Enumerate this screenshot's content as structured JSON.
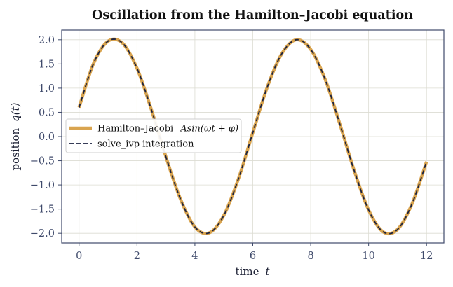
{
  "chart_data": {
    "type": "line",
    "title": "Oscillation from the Hamilton–Jacobi equation",
    "xlabel": "time",
    "xlabel_symbol": "t",
    "ylabel": "position",
    "ylabel_symbol": "q(t)",
    "xlim": [
      -0.6,
      12.6
    ],
    "ylim": [
      -2.2,
      2.2
    ],
    "xticks": [
      0,
      2,
      4,
      6,
      8,
      10,
      12
    ],
    "yticks": [
      2.0,
      1.5,
      1.0,
      0.5,
      0.0,
      -0.5,
      -1.0,
      -1.5,
      -2.0
    ],
    "ytick_labels": [
      "2.0",
      "1.5",
      "1.0",
      "0.5",
      "0.0",
      "−0.5",
      "−1.0",
      "−1.5",
      "−2.0"
    ],
    "grid": true,
    "legend_position": "center-left",
    "series": [
      {
        "name": "Hamilton–Jacobi",
        "name_formula": "Asin(ωt + φ)",
        "style": "solid-thick",
        "color": "#d9a44f",
        "x": [
          0,
          0.5,
          1,
          1.5,
          2,
          2.5,
          3,
          3.5,
          4,
          4.5,
          5,
          5.5,
          6,
          6.5,
          7,
          7.5,
          8,
          8.5,
          9,
          9.5,
          10,
          10.5,
          11,
          11.5,
          12
        ],
        "y": [
          0.6,
          1.51,
          1.97,
          1.93,
          1.41,
          0.55,
          -0.42,
          -1.29,
          -1.87,
          -1.99,
          -1.63,
          -0.88,
          0.08,
          1.02,
          1.71,
          2.0,
          1.8,
          1.18,
          0.27,
          -0.7,
          -1.52,
          -1.97,
          -1.92,
          -1.39,
          -0.52
        ]
      },
      {
        "name": "solve_ivp integration",
        "style": "dashed",
        "color": "#1b2240",
        "x": [
          0,
          0.5,
          1,
          1.5,
          2,
          2.5,
          3,
          3.5,
          4,
          4.5,
          5,
          5.5,
          6,
          6.5,
          7,
          7.5,
          8,
          8.5,
          9,
          9.5,
          10,
          10.5,
          11,
          11.5,
          12
        ],
        "y": [
          0.6,
          1.51,
          1.97,
          1.93,
          1.41,
          0.55,
          -0.42,
          -1.29,
          -1.87,
          -1.99,
          -1.63,
          -0.88,
          0.08,
          1.02,
          1.71,
          2.0,
          1.8,
          1.18,
          0.27,
          -0.7,
          -1.52,
          -1.97,
          -1.92,
          -1.39,
          -0.52
        ]
      }
    ],
    "colors": {
      "frame": "#3f4a6b",
      "grid": "#dcdcd2",
      "hj_line": "#d9a44f",
      "ivp_line": "#1b2240"
    }
  }
}
